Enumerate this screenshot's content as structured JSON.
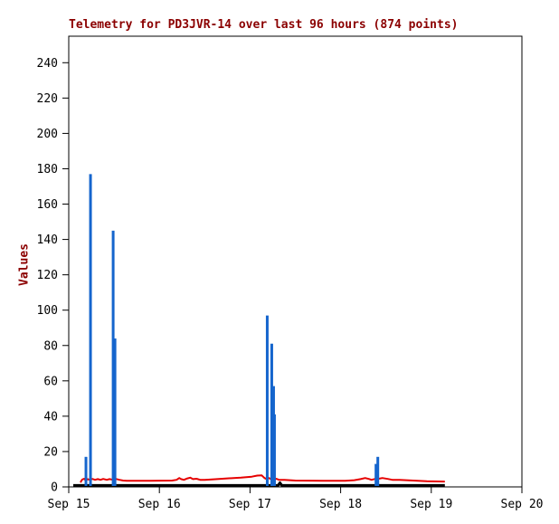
{
  "window": {
    "background": "#ffffff"
  },
  "chart_data": {
    "type": "line",
    "title": "Telemetry for PD3JVR-14 over last 96 hours (874 points)",
    "title_color": "#8b0000",
    "ylabel": "Values",
    "ylabel_color": "#8b0000",
    "xlabel": "",
    "axis_color": "#000000",
    "tick_label_color": "#000000",
    "grid": false,
    "legend": "none",
    "xlim_days": [
      0,
      5
    ],
    "ylim": [
      0,
      255
    ],
    "y_ticks": [
      0,
      20,
      40,
      60,
      80,
      100,
      120,
      140,
      160,
      180,
      200,
      220,
      240
    ],
    "x_ticks": [
      {
        "t": 0,
        "label": "Sep 15"
      },
      {
        "t": 1,
        "label": "Sep 16"
      },
      {
        "t": 2,
        "label": "Sep 17"
      },
      {
        "t": 3,
        "label": "Sep 18"
      },
      {
        "t": 4,
        "label": "Sep 19"
      },
      {
        "t": 5,
        "label": "Sep 20"
      }
    ],
    "series": [
      {
        "name": "channel-black-baseline",
        "type": "line",
        "color": "#000000",
        "width": 3,
        "points": [
          [
            0.05,
            0.8
          ],
          [
            2.31,
            0.8
          ],
          [
            2.33,
            2.3
          ],
          [
            2.35,
            0.8
          ],
          [
            4.15,
            0.8
          ]
        ]
      },
      {
        "name": "channel-red",
        "type": "line",
        "color": "#e60000",
        "width": 2,
        "points": [
          [
            0.13,
            2.5
          ],
          [
            0.14,
            3.5
          ],
          [
            0.15,
            4.2
          ],
          [
            0.17,
            4.6
          ],
          [
            0.19,
            3.6
          ],
          [
            0.21,
            4.4
          ],
          [
            0.23,
            4.0
          ],
          [
            0.26,
            4.5
          ],
          [
            0.29,
            4.0
          ],
          [
            0.32,
            4.4
          ],
          [
            0.35,
            4.0
          ],
          [
            0.38,
            4.5
          ],
          [
            0.42,
            4.0
          ],
          [
            0.45,
            4.4
          ],
          [
            0.49,
            4.0
          ],
          [
            0.52,
            4.5
          ],
          [
            0.56,
            4.0
          ],
          [
            0.6,
            3.6
          ],
          [
            0.64,
            3.5
          ],
          [
            0.9,
            3.5
          ],
          [
            1.14,
            3.6
          ],
          [
            1.19,
            4.0
          ],
          [
            1.22,
            5.0
          ],
          [
            1.24,
            4.4
          ],
          [
            1.27,
            4.0
          ],
          [
            1.31,
            4.8
          ],
          [
            1.34,
            5.2
          ],
          [
            1.37,
            4.4
          ],
          [
            1.41,
            4.6
          ],
          [
            1.45,
            4.0
          ],
          [
            1.5,
            4.0
          ],
          [
            1.6,
            4.3
          ],
          [
            1.75,
            4.8
          ],
          [
            1.9,
            5.2
          ],
          [
            2.02,
            5.8
          ],
          [
            2.08,
            6.4
          ],
          [
            2.13,
            6.5
          ],
          [
            2.16,
            5.0
          ],
          [
            2.18,
            4.5
          ],
          [
            2.21,
            5.0
          ],
          [
            2.23,
            4.4
          ],
          [
            2.26,
            4.0
          ],
          [
            2.29,
            4.6
          ],
          [
            2.32,
            4.0
          ],
          [
            2.38,
            4.0
          ],
          [
            2.5,
            3.6
          ],
          [
            2.8,
            3.5
          ],
          [
            3.05,
            3.5
          ],
          [
            3.15,
            3.8
          ],
          [
            3.22,
            4.4
          ],
          [
            3.27,
            5.0
          ],
          [
            3.31,
            4.5
          ],
          [
            3.34,
            4.0
          ],
          [
            3.38,
            4.5
          ],
          [
            3.42,
            4.6
          ],
          [
            3.46,
            5.0
          ],
          [
            3.52,
            4.5
          ],
          [
            3.57,
            4.0
          ],
          [
            3.65,
            4.0
          ],
          [
            3.8,
            3.6
          ],
          [
            3.95,
            3.2
          ],
          [
            4.15,
            3.0
          ]
        ]
      },
      {
        "name": "channel-blue-spikes",
        "type": "impulse",
        "color": "#1565cd",
        "width": 3,
        "points": [
          [
            0.19,
            17
          ],
          [
            0.24,
            177
          ],
          [
            0.49,
            145
          ],
          [
            0.51,
            84
          ],
          [
            2.19,
            97
          ],
          [
            2.24,
            81
          ],
          [
            2.26,
            57
          ],
          [
            2.27,
            41
          ],
          [
            3.39,
            13
          ],
          [
            3.41,
            17
          ]
        ]
      }
    ]
  }
}
